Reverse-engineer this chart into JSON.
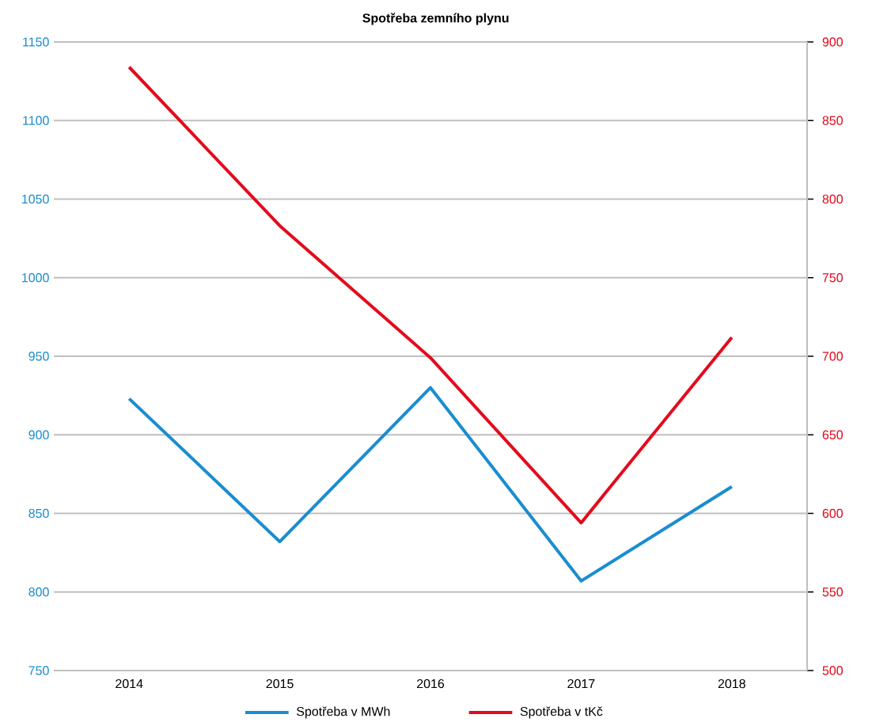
{
  "chart_data": {
    "type": "line",
    "title": "Spotřeba zemního plynu",
    "categories": [
      "2014",
      "2015",
      "2016",
      "2017",
      "2018"
    ],
    "series": [
      {
        "name": "Spotřeba v MWh",
        "color": "#1a8dd0",
        "values": [
          923,
          832,
          930,
          807,
          867
        ]
      },
      {
        "name": "Spotřeba v tKč",
        "color": "#e30b1c",
        "values": [
          884,
          783,
          699,
          594,
          712
        ],
        "axis": "y2"
      }
    ],
    "ylim": [
      750,
      1150
    ],
    "yticks": [
      750,
      800,
      850,
      900,
      950,
      1000,
      1050,
      1100,
      1150
    ],
    "y2lim": [
      500,
      900
    ],
    "y2ticks": [
      500,
      550,
      600,
      650,
      700,
      750,
      800,
      850,
      900
    ],
    "grid": "y",
    "legend": "bottom",
    "marker": "none",
    "line_style": "solid"
  }
}
